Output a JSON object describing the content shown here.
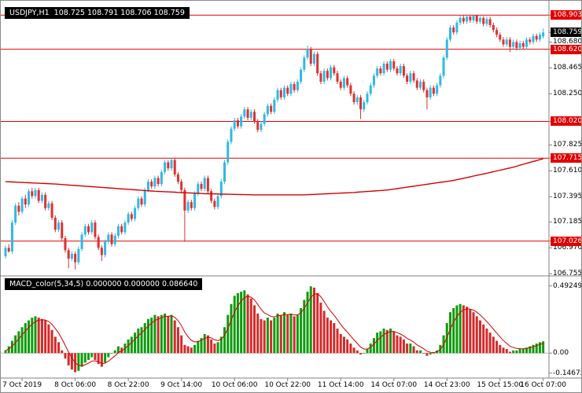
{
  "header": {
    "text": "USDJPY,H1  108.725 108.791 108.706 108.759"
  },
  "macd_header": {
    "text": "MACD_color(5,34,5) 0.000000 0.000000 0.086640"
  },
  "chart_data": {
    "type": "candlestick",
    "symbol": "USDJPY",
    "period": "H1",
    "ylim": [
      106.75,
      108.97
    ],
    "price_axis": {
      "plain_ticks": [
        "108.680",
        "108.465",
        "108.250",
        "107.825",
        "107.610",
        "107.395",
        "107.185",
        "106.970",
        "106.755"
      ],
      "highlight_levels": [
        "108.903",
        "108.620",
        "108.020",
        "107.715",
        "107.026"
      ],
      "current_price": "108.759"
    },
    "x_axis": {
      "labels": [
        "7 Oct 2019",
        "8 Oct 06:00",
        "8 Oct 22:00",
        "9 Oct 14:00",
        "10 Oct 06:00",
        "10 Oct 22:00",
        "11 Oct 14:00",
        "14 Oct 07:00",
        "14 Oct 23:00",
        "15 Oct 15:00",
        "16 Oct 07:00"
      ],
      "indices": [
        5,
        21,
        37,
        53,
        69,
        85,
        101,
        117,
        133,
        149,
        162
      ]
    },
    "ohlc": [
      [
        106.9,
        106.99,
        106.88,
        106.97
      ],
      [
        106.97,
        107.0,
        106.93,
        106.94
      ],
      [
        106.94,
        107.2,
        106.92,
        107.18
      ],
      [
        107.18,
        107.34,
        107.16,
        107.32
      ],
      [
        107.32,
        107.35,
        107.24,
        107.27
      ],
      [
        107.27,
        107.4,
        107.25,
        107.38
      ],
      [
        107.38,
        107.41,
        107.3,
        107.33
      ],
      [
        107.33,
        107.46,
        107.31,
        107.44
      ],
      [
        107.44,
        107.47,
        107.38,
        107.4
      ],
      [
        107.4,
        107.47,
        107.38,
        107.45
      ],
      [
        107.45,
        107.47,
        107.34,
        107.36
      ],
      [
        107.36,
        107.43,
        107.34,
        107.41
      ],
      [
        107.41,
        107.43,
        107.28,
        107.3
      ],
      [
        107.3,
        107.36,
        107.28,
        107.34
      ],
      [
        107.34,
        107.36,
        107.2,
        107.22
      ],
      [
        107.22,
        107.24,
        107.1,
        107.12
      ],
      [
        107.12,
        107.2,
        107.1,
        107.18
      ],
      [
        107.18,
        107.2,
        107.03,
        107.05
      ],
      [
        107.05,
        107.07,
        106.93,
        106.95
      ],
      [
        106.95,
        106.97,
        106.8,
        106.88
      ],
      [
        106.88,
        106.94,
        106.86,
        106.92
      ],
      [
        106.92,
        106.94,
        106.79,
        106.85
      ],
      [
        106.85,
        106.98,
        106.83,
        106.96
      ],
      [
        106.96,
        107.1,
        106.94,
        107.08
      ],
      [
        107.08,
        107.17,
        107.06,
        107.15
      ],
      [
        107.15,
        107.17,
        107.08,
        107.1
      ],
      [
        107.1,
        107.2,
        107.08,
        107.18
      ],
      [
        107.18,
        107.2,
        107.04,
        107.06
      ],
      [
        107.06,
        107.08,
        106.95,
        106.97
      ],
      [
        106.97,
        106.99,
        106.86,
        106.91
      ],
      [
        106.91,
        107.04,
        106.89,
        107.02
      ],
      [
        107.02,
        107.1,
        107.0,
        107.08
      ],
      [
        107.08,
        107.1,
        106.98,
        107.0
      ],
      [
        107.0,
        107.09,
        106.98,
        107.07
      ],
      [
        107.07,
        107.17,
        107.05,
        107.15
      ],
      [
        107.15,
        107.17,
        107.08,
        107.1
      ],
      [
        107.1,
        107.2,
        107.08,
        107.18
      ],
      [
        107.18,
        107.27,
        107.16,
        107.25
      ],
      [
        107.25,
        107.27,
        107.19,
        107.21
      ],
      [
        107.21,
        107.32,
        107.19,
        107.3
      ],
      [
        107.3,
        107.4,
        107.28,
        107.38
      ],
      [
        107.38,
        107.4,
        107.31,
        107.33
      ],
      [
        107.33,
        107.47,
        107.31,
        107.45
      ],
      [
        107.45,
        107.54,
        107.43,
        107.52
      ],
      [
        107.52,
        107.54,
        107.46,
        107.48
      ],
      [
        107.48,
        107.57,
        107.46,
        107.55
      ],
      [
        107.55,
        107.57,
        107.48,
        107.5
      ],
      [
        107.5,
        107.62,
        107.48,
        107.6
      ],
      [
        107.6,
        107.7,
        107.58,
        107.68
      ],
      [
        107.68,
        107.7,
        107.61,
        107.63
      ],
      [
        107.63,
        107.72,
        107.61,
        107.7
      ],
      [
        107.7,
        107.72,
        107.56,
        107.58
      ],
      [
        107.58,
        107.6,
        107.5,
        107.52
      ],
      [
        107.52,
        107.54,
        107.43,
        107.45
      ],
      [
        107.45,
        107.47,
        107.02,
        107.28
      ],
      [
        107.28,
        107.37,
        107.26,
        107.35
      ],
      [
        107.35,
        107.37,
        107.28,
        107.3
      ],
      [
        107.3,
        107.44,
        107.28,
        107.42
      ],
      [
        107.42,
        107.52,
        107.4,
        107.5
      ],
      [
        107.5,
        107.52,
        107.44,
        107.46
      ],
      [
        107.46,
        107.57,
        107.44,
        107.55
      ],
      [
        107.55,
        107.57,
        107.42,
        107.44
      ],
      [
        107.44,
        107.46,
        107.34,
        107.36
      ],
      [
        107.36,
        107.38,
        107.29,
        107.31
      ],
      [
        107.31,
        107.42,
        107.29,
        107.4
      ],
      [
        107.4,
        107.54,
        107.38,
        107.52
      ],
      [
        107.52,
        107.7,
        107.5,
        107.68
      ],
      [
        107.68,
        107.87,
        107.66,
        107.85
      ],
      [
        107.85,
        107.98,
        107.83,
        107.96
      ],
      [
        107.96,
        108.05,
        107.94,
        108.03
      ],
      [
        108.03,
        108.05,
        107.96,
        107.98
      ],
      [
        107.98,
        108.08,
        107.96,
        108.06
      ],
      [
        108.06,
        108.14,
        108.04,
        108.12
      ],
      [
        108.12,
        108.14,
        108.03,
        108.05
      ],
      [
        108.05,
        108.12,
        108.03,
        108.1
      ],
      [
        108.1,
        108.12,
        108.0,
        108.02
      ],
      [
        108.02,
        108.04,
        107.93,
        107.95
      ],
      [
        107.95,
        108.02,
        107.93,
        108.0
      ],
      [
        108.0,
        108.1,
        107.98,
        108.08
      ],
      [
        108.08,
        108.17,
        108.06,
        108.15
      ],
      [
        108.15,
        108.17,
        108.08,
        108.1
      ],
      [
        108.1,
        108.22,
        108.08,
        108.2
      ],
      [
        108.2,
        108.3,
        108.18,
        108.28
      ],
      [
        108.28,
        108.3,
        108.2,
        108.22
      ],
      [
        108.22,
        108.32,
        108.2,
        108.3
      ],
      [
        108.3,
        108.32,
        108.23,
        108.25
      ],
      [
        108.25,
        108.35,
        108.23,
        108.33
      ],
      [
        108.33,
        108.35,
        108.26,
        108.28
      ],
      [
        108.28,
        108.37,
        108.26,
        108.35
      ],
      [
        108.35,
        108.47,
        108.33,
        108.45
      ],
      [
        108.45,
        108.57,
        108.43,
        108.55
      ],
      [
        108.55,
        108.65,
        108.53,
        108.62
      ],
      [
        108.62,
        108.64,
        108.48,
        108.5
      ],
      [
        108.5,
        108.6,
        108.48,
        108.58
      ],
      [
        108.58,
        108.6,
        108.4,
        108.42
      ],
      [
        108.42,
        108.44,
        108.33,
        108.35
      ],
      [
        108.35,
        108.46,
        108.33,
        108.44
      ],
      [
        108.44,
        108.46,
        108.36,
        108.38
      ],
      [
        108.38,
        108.49,
        108.36,
        108.47
      ],
      [
        108.47,
        108.49,
        108.4,
        108.42
      ],
      [
        108.42,
        108.44,
        108.33,
        108.35
      ],
      [
        108.35,
        108.37,
        108.28,
        108.3
      ],
      [
        108.3,
        108.4,
        108.28,
        108.38
      ],
      [
        108.38,
        108.4,
        108.3,
        108.32
      ],
      [
        108.32,
        108.34,
        108.23,
        108.25
      ],
      [
        108.25,
        108.27,
        108.16,
        108.18
      ],
      [
        108.18,
        108.24,
        108.16,
        108.22
      ],
      [
        108.22,
        108.24,
        108.04,
        108.12
      ],
      [
        108.12,
        108.2,
        108.1,
        108.18
      ],
      [
        108.18,
        108.27,
        108.16,
        108.25
      ],
      [
        108.25,
        108.34,
        108.23,
        108.32
      ],
      [
        108.32,
        108.42,
        108.3,
        108.4
      ],
      [
        108.4,
        108.48,
        108.38,
        108.46
      ],
      [
        108.46,
        108.48,
        108.4,
        108.42
      ],
      [
        108.42,
        108.52,
        108.4,
        108.5
      ],
      [
        108.5,
        108.52,
        108.43,
        108.45
      ],
      [
        108.45,
        108.54,
        108.43,
        108.52
      ],
      [
        108.52,
        108.54,
        108.44,
        108.46
      ],
      [
        108.46,
        108.48,
        108.4,
        108.42
      ],
      [
        108.42,
        108.5,
        108.4,
        108.48
      ],
      [
        108.48,
        108.5,
        108.38,
        108.4
      ],
      [
        108.4,
        108.42,
        108.33,
        108.35
      ],
      [
        108.35,
        108.44,
        108.33,
        108.42
      ],
      [
        108.42,
        108.44,
        108.34,
        108.36
      ],
      [
        108.36,
        108.38,
        108.28,
        108.3
      ],
      [
        108.3,
        108.37,
        108.28,
        108.35
      ],
      [
        108.35,
        108.37,
        108.26,
        108.28
      ],
      [
        108.28,
        108.3,
        108.12,
        108.22
      ],
      [
        108.22,
        108.32,
        108.2,
        108.3
      ],
      [
        108.3,
        108.32,
        108.23,
        108.25
      ],
      [
        108.25,
        108.34,
        108.23,
        108.32
      ],
      [
        108.32,
        108.42,
        108.3,
        108.4
      ],
      [
        108.4,
        108.57,
        108.38,
        108.55
      ],
      [
        108.55,
        108.72,
        108.53,
        108.7
      ],
      [
        108.7,
        108.82,
        108.68,
        108.8
      ],
      [
        108.8,
        108.82,
        108.74,
        108.76
      ],
      [
        108.76,
        108.86,
        108.74,
        108.84
      ],
      [
        108.84,
        108.9,
        108.82,
        108.88
      ],
      [
        108.88,
        108.9,
        108.83,
        108.85
      ],
      [
        108.85,
        108.9,
        108.83,
        108.89
      ],
      [
        108.89,
        108.9,
        108.84,
        108.86
      ],
      [
        108.86,
        108.903,
        108.84,
        108.9
      ],
      [
        108.9,
        108.9,
        108.83,
        108.85
      ],
      [
        108.85,
        108.895,
        108.83,
        108.88
      ],
      [
        108.88,
        108.895,
        108.81,
        108.83
      ],
      [
        108.83,
        108.89,
        108.81,
        108.87
      ],
      [
        108.87,
        108.89,
        108.8,
        108.82
      ],
      [
        108.82,
        108.84,
        108.76,
        108.78
      ],
      [
        108.78,
        108.8,
        108.72,
        108.74
      ],
      [
        108.74,
        108.76,
        108.68,
        108.7
      ],
      [
        108.7,
        108.72,
        108.64,
        108.66
      ],
      [
        108.66,
        108.72,
        108.64,
        108.7
      ],
      [
        108.7,
        108.72,
        108.595,
        108.64
      ],
      [
        108.64,
        108.7,
        108.62,
        108.68
      ],
      [
        108.68,
        108.7,
        108.61,
        108.63
      ],
      [
        108.63,
        108.69,
        108.61,
        108.67
      ],
      [
        108.67,
        108.69,
        108.62,
        108.64
      ],
      [
        108.64,
        108.72,
        108.62,
        108.7
      ],
      [
        108.7,
        108.72,
        108.66,
        108.68
      ],
      [
        108.68,
        108.75,
        108.66,
        108.73
      ],
      [
        108.73,
        108.75,
        108.68,
        108.7
      ],
      [
        108.7,
        108.76,
        108.68,
        108.74
      ],
      [
        108.725,
        108.791,
        108.706,
        108.759
      ]
    ],
    "ma_points": [
      [
        0,
        107.52
      ],
      [
        15,
        107.5
      ],
      [
        30,
        107.47
      ],
      [
        45,
        107.44
      ],
      [
        60,
        107.42
      ],
      [
        75,
        107.41
      ],
      [
        90,
        107.41
      ],
      [
        105,
        107.43
      ],
      [
        115,
        107.45
      ],
      [
        125,
        107.49
      ],
      [
        135,
        107.53
      ],
      [
        145,
        107.59
      ],
      [
        153,
        107.64
      ],
      [
        158,
        107.68
      ],
      [
        162,
        107.71
      ]
    ],
    "macd": {
      "ylim": [
        -0.16,
        0.52
      ],
      "axis_ticks": [
        {
          "value": 0.49249,
          "label": "0.49249"
        },
        {
          "value": 0.0,
          "label": "0.00"
        },
        {
          "value": -0.14672,
          "label": "-0.14672"
        }
      ],
      "values": [
        0.02,
        0.05,
        0.09,
        0.13,
        0.16,
        0.19,
        0.22,
        0.24,
        0.26,
        0.27,
        0.26,
        0.25,
        0.24,
        0.21,
        0.17,
        0.12,
        0.08,
        0.02,
        -0.04,
        -0.09,
        -0.12,
        -0.14,
        -0.13,
        -0.1,
        -0.07,
        -0.05,
        -0.03,
        -0.05,
        -0.08,
        -0.1,
        -0.07,
        -0.03,
        0.0,
        0.02,
        0.05,
        0.04,
        0.07,
        0.1,
        0.12,
        0.15,
        0.18,
        0.19,
        0.22,
        0.25,
        0.26,
        0.28,
        0.27,
        0.28,
        0.29,
        0.27,
        0.28,
        0.24,
        0.19,
        0.13,
        0.06,
        0.05,
        0.04,
        0.06,
        0.09,
        0.11,
        0.14,
        0.13,
        0.1,
        0.07,
        0.08,
        0.12,
        0.19,
        0.28,
        0.36,
        0.42,
        0.44,
        0.45,
        0.46,
        0.43,
        0.4,
        0.35,
        0.29,
        0.25,
        0.24,
        0.26,
        0.24,
        0.26,
        0.29,
        0.28,
        0.3,
        0.28,
        0.29,
        0.27,
        0.28,
        0.33,
        0.39,
        0.45,
        0.49,
        0.48,
        0.44,
        0.37,
        0.31,
        0.26,
        0.24,
        0.22,
        0.18,
        0.14,
        0.12,
        0.1,
        0.07,
        0.04,
        0.02,
        -0.01,
        0.0,
        0.03,
        0.07,
        0.11,
        0.15,
        0.16,
        0.18,
        0.17,
        0.18,
        0.16,
        0.13,
        0.12,
        0.1,
        0.07,
        0.07,
        0.05,
        0.02,
        0.02,
        0.0,
        -0.02,
        -0.01,
        0.0,
        0.02,
        0.06,
        0.13,
        0.22,
        0.3,
        0.33,
        0.35,
        0.36,
        0.35,
        0.34,
        0.32,
        0.3,
        0.27,
        0.24,
        0.21,
        0.18,
        0.15,
        0.12,
        0.09,
        0.06,
        0.04,
        0.03,
        0.01,
        0.02,
        0.02,
        0.03,
        0.03,
        0.04,
        0.05,
        0.06,
        0.07,
        0.08,
        0.08664
      ]
    },
    "colors": {
      "bull": "#2fb9e4",
      "bear": "#e03030",
      "level_line": "#e00000",
      "level_box": "#e00000",
      "current_box": "#000000",
      "ma_line": "#d40000",
      "macd_up": "#0e9c0e",
      "macd_down": "#d42a2a",
      "signal_line": "#d40000",
      "axis_line": "#808080",
      "zero_line": "#bbbbbb"
    }
  }
}
